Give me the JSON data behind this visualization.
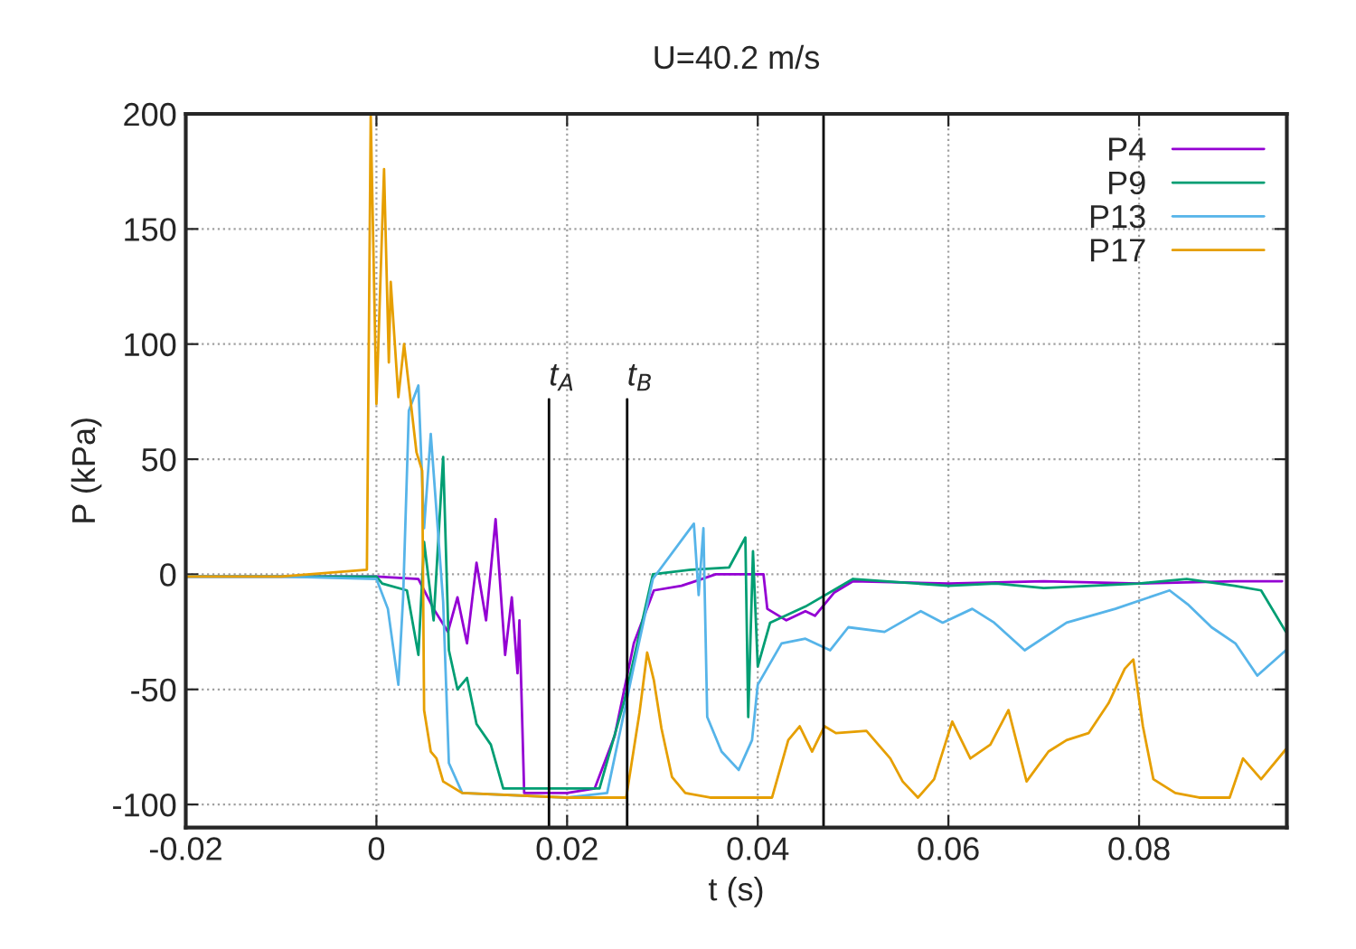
{
  "chart_data": {
    "type": "line",
    "title": "U=40.2 m/s",
    "xlabel": "t (s)",
    "ylabel": "P (kPa)",
    "xlim": [
      -0.02,
      0.0955
    ],
    "xticks": [
      -0.02,
      0,
      0.02,
      0.04,
      0.06,
      0.08
    ],
    "ylim": [
      -110,
      200
    ],
    "yticks": [
      -100,
      -50,
      0,
      50,
      100,
      150,
      200
    ],
    "grid": true,
    "legend": "top right",
    "line_style": "solid",
    "marker": "none",
    "ref_lines": [
      {
        "axis": "x",
        "value": 0.0181,
        "label": "t$_{A}$",
        "color": "#000000"
      },
      {
        "axis": "x",
        "value": 0.0263,
        "label": "t$_{B}$",
        "color": "#000000"
      },
      {
        "axis": "x",
        "value": 0.0469,
        "color": "#000000"
      }
    ],
    "series": [
      {
        "name": "P4",
        "color": "#9400d3",
        "x": [
          -0.02,
          -0.01,
          0.0,
          0.0044,
          0.006,
          0.0075,
          0.0085,
          0.0095,
          0.0105,
          0.0115,
          0.0125,
          0.0135,
          0.0142,
          0.0148,
          0.015,
          0.0155,
          0.02,
          0.0229,
          0.025,
          0.027,
          0.0291,
          0.032,
          0.0356,
          0.0406,
          0.041,
          0.043,
          0.045,
          0.046,
          0.048,
          0.05,
          0.06,
          0.07,
          0.08,
          0.09,
          0.095
        ],
        "values": [
          -1,
          -1,
          -1,
          -2,
          -15,
          -25,
          -10,
          -30,
          5,
          -20,
          24,
          -35,
          -10,
          -43,
          -20,
          -95,
          -95,
          -93,
          -70,
          -30,
          -7,
          -5,
          0,
          0,
          -15,
          -20,
          -16,
          -18,
          -8,
          -3,
          -4,
          -3,
          -4,
          -3,
          -3
        ]
      },
      {
        "name": "P9",
        "color": "#009e73",
        "x": [
          -0.02,
          -0.01,
          0.0,
          0.0006,
          0.0032,
          0.0044,
          0.005,
          0.006,
          0.007,
          0.0076,
          0.0085,
          0.0095,
          0.0105,
          0.012,
          0.0133,
          0.02,
          0.0234,
          0.026,
          0.029,
          0.033,
          0.037,
          0.0387,
          0.039,
          0.0395,
          0.04,
          0.0413,
          0.045,
          0.05,
          0.06,
          0.065,
          0.07,
          0.08,
          0.085,
          0.09,
          0.0928,
          0.0954
        ],
        "values": [
          -1,
          -1,
          -1,
          -4,
          -7,
          -35,
          14,
          -20,
          51,
          -33,
          -50,
          -45,
          -65,
          -74,
          -93,
          -93,
          -93,
          -55,
          0,
          2,
          3,
          16,
          -62,
          10,
          -40,
          -21,
          -14,
          -2,
          -5,
          -4,
          -6,
          -4,
          -2,
          -5,
          -7,
          -25
        ]
      },
      {
        "name": "P13",
        "color": "#56b4e9",
        "x": [
          -0.02,
          -0.01,
          0.0,
          0.0012,
          0.0023,
          0.0028,
          0.0034,
          0.0044,
          0.005,
          0.0057,
          0.007,
          0.0076,
          0.009,
          0.02,
          0.0242,
          0.027,
          0.029,
          0.0333,
          0.0338,
          0.0343,
          0.0347,
          0.0362,
          0.038,
          0.0394,
          0.04,
          0.0425,
          0.045,
          0.0476,
          0.0495,
          0.0533,
          0.0571,
          0.0594,
          0.0625,
          0.0648,
          0.068,
          0.0724,
          0.0775,
          0.0832,
          0.0851,
          0.0876,
          0.0901,
          0.0924,
          0.0954
        ],
        "values": [
          -1,
          -1,
          -2,
          -15,
          -48,
          -10,
          71,
          82,
          20,
          61,
          -12,
          -82,
          -95,
          -97,
          -95,
          -40,
          -2,
          22,
          -9,
          20,
          -62,
          -77,
          -85,
          -72,
          -48,
          -30,
          -28,
          -33,
          -23,
          -25,
          -16,
          -21,
          -15,
          -21,
          -33,
          -21,
          -15,
          -7,
          -13,
          -23,
          -30,
          -44,
          -33
        ]
      },
      {
        "name": "P17",
        "color": "#e69f00",
        "x": [
          -0.02,
          -0.01,
          -0.001,
          -0.0006,
          0.0,
          0.0008,
          0.0013,
          0.0015,
          0.0023,
          0.0029,
          0.0034,
          0.0042,
          0.0048,
          0.005,
          0.0057,
          0.0063,
          0.007,
          0.009,
          0.02,
          0.0262,
          0.0276,
          0.0284,
          0.0291,
          0.0299,
          0.031,
          0.0324,
          0.035,
          0.0415,
          0.0432,
          0.0444,
          0.0457,
          0.047,
          0.0482,
          0.0514,
          0.0539,
          0.0552,
          0.0568,
          0.0585,
          0.0604,
          0.0623,
          0.0644,
          0.0663,
          0.0682,
          0.0705,
          0.0724,
          0.0747,
          0.0768,
          0.0785,
          0.0794,
          0.0804,
          0.0815,
          0.0838,
          0.0863,
          0.0895,
          0.0909,
          0.0928,
          0.0954
        ],
        "values": [
          -1,
          -1,
          2,
          200,
          74,
          176,
          92,
          127,
          77,
          100,
          82,
          53,
          45,
          -59,
          -77,
          -80,
          -90,
          -95,
          -97,
          -97,
          -60,
          -34,
          -46,
          -67,
          -88,
          -95,
          -97,
          -97,
          -72,
          -66,
          -77,
          -66,
          -69,
          -68,
          -80,
          -90,
          -97,
          -89,
          -64,
          -80,
          -74,
          -59,
          -90,
          -77,
          -72,
          -69,
          -56,
          -41,
          -37,
          -66,
          -89,
          -95,
          -97,
          -97,
          -80,
          -89,
          -76
        ]
      }
    ]
  }
}
